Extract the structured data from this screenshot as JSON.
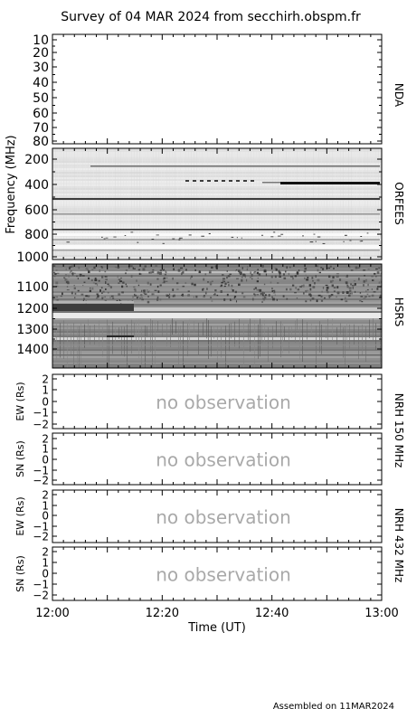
{
  "title": "Survey of 04 MAR 2024 from secchirh.obspm.fr",
  "footer": "Assembled on 11MAR2024",
  "chart_data": {
    "type": "heatmap",
    "x_axis": {
      "label": "Time (UT)",
      "range": [
        "12:00",
        "13:00"
      ],
      "ticks": [
        "12:00",
        "12:20",
        "12:40",
        "13:00"
      ]
    },
    "y_axis_label": "Frequency (MHz)",
    "panels": [
      {
        "name": "NDA",
        "unit": "MHz",
        "ylim": [
          10,
          80
        ],
        "ticks": [
          "10",
          "20",
          "30",
          "40",
          "50",
          "60",
          "70",
          "80"
        ],
        "state": "empty"
      },
      {
        "name": "ORFEES",
        "unit": "MHz",
        "ylim": [
          150,
          1000
        ],
        "ticks": [
          "200",
          "400",
          "600",
          "800",
          "1000"
        ],
        "state": "spectrogram"
      },
      {
        "name": "HSRS",
        "unit": "MHz",
        "ylim": [
          1020,
          1480
        ],
        "ticks": [
          "1100",
          "1200",
          "1300",
          "1400"
        ],
        "state": "spectrogram"
      },
      {
        "name": "NRH 150 MHz",
        "axis_label": "EW (Rs)",
        "ylim": [
          -2,
          2
        ],
        "ticks": [
          "2",
          "1",
          "0",
          "−1",
          "−2"
        ],
        "state": "no observation"
      },
      {
        "name": "NRH 150 MHz",
        "axis_label": "SN (Rs)",
        "ylim": [
          -2,
          2
        ],
        "ticks": [
          "2",
          "1",
          "0",
          "−1",
          "−2"
        ],
        "state": "no observation"
      },
      {
        "name": "NRH 432 MHz",
        "axis_label": "EW (Rs)",
        "ylim": [
          -2,
          2
        ],
        "ticks": [
          "2",
          "1",
          "0",
          "−1",
          "−2"
        ],
        "state": "no observation"
      },
      {
        "name": "NRH 432 MHz",
        "axis_label": "SN (Rs)",
        "ylim": [
          -2,
          2
        ],
        "ticks": [
          "2",
          "1",
          "0",
          "−1",
          "−2"
        ],
        "state": "no observation"
      }
    ],
    "right_labels": [
      "NDA",
      "ORFEES",
      "HSRS",
      "NRH 150 MHz",
      "NRH 432 MHz"
    ],
    "no_observation_text": "no observation"
  }
}
